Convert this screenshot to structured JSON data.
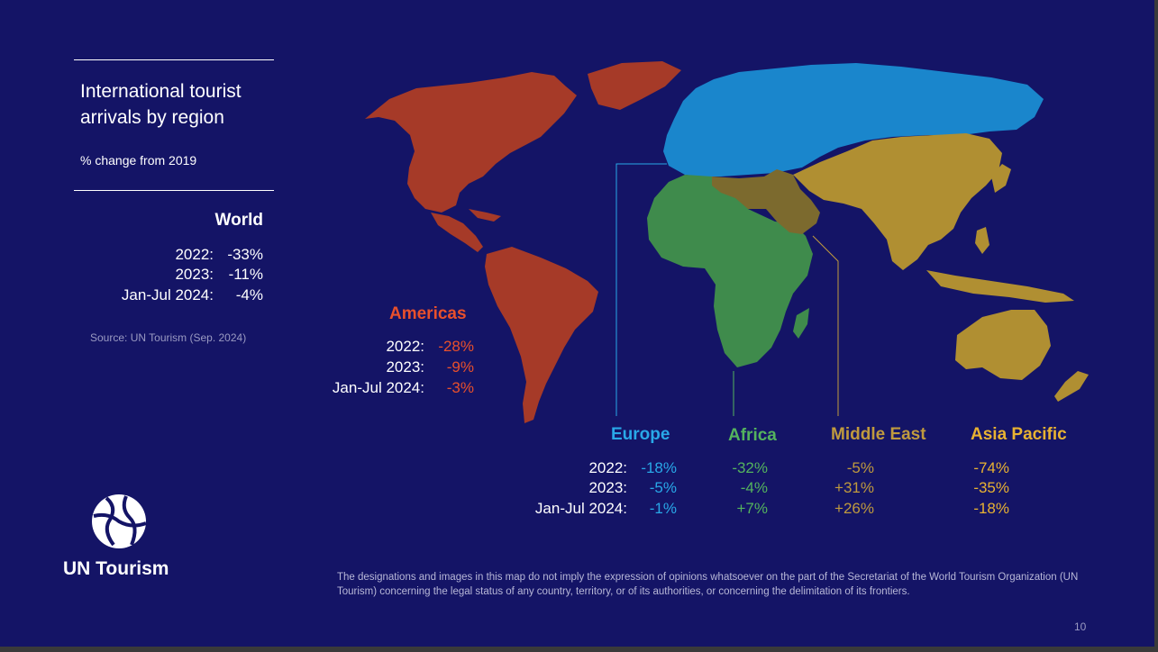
{
  "title": "International tourist arrivals by region",
  "subtitle": "% change from 2019",
  "world": {
    "title": "World",
    "rows": [
      {
        "label": "2022:",
        "value": "-33%"
      },
      {
        "label": "2023:",
        "value": "-11%"
      },
      {
        "label": "Jan-Jul 2024:",
        "value": "-4%"
      }
    ]
  },
  "source": "Source: UN Tourism  (Sep. 2024)",
  "row_labels": [
    "2022:",
    "2023:",
    "Jan-Jul 2024:"
  ],
  "regions": {
    "americas": {
      "name": "Americas",
      "color": "#a63a28",
      "text_color": "#e8502c",
      "rows": [
        {
          "label": "2022:",
          "value": "-28%"
        },
        {
          "label": "2023:",
          "value": "-9%"
        },
        {
          "label": "Jan-Jul 2024:",
          "value": "-3%"
        }
      ]
    },
    "europe": {
      "name": "Europe",
      "color": "#1a86cc",
      "text_color": "#29a8e8",
      "values": [
        "-18%",
        "-5%",
        "-1%"
      ]
    },
    "africa": {
      "name": "Africa",
      "color": "#3f8b4c",
      "text_color": "#54b35e",
      "values": [
        "-32%",
        "-4%",
        "+7%"
      ]
    },
    "middle_east": {
      "name": "Middle East",
      "color": "#7c6a2e",
      "text_color": "#c09a3e",
      "values": [
        "-5%",
        "+31%",
        "+26%"
      ]
    },
    "asia_pacific": {
      "name": "Asia Pacific",
      "color": "#b08f32",
      "text_color": "#e8b232",
      "values": [
        "-74%",
        "-35%",
        "-18%"
      ]
    }
  },
  "brand": "UN Tourism",
  "disclaimer": "The designations and images in this map do not imply the expression of opinions whatsoever on the part of the Secretariat of the World Tourism Organization (UN Tourism) concerning the legal status of any country, territory, or of its authorities, or concerning the delimitation of its frontiers.",
  "page_number": "10",
  "colors": {
    "background": "#141466",
    "text": "#ffffff",
    "muted": "#9a9ac2"
  }
}
